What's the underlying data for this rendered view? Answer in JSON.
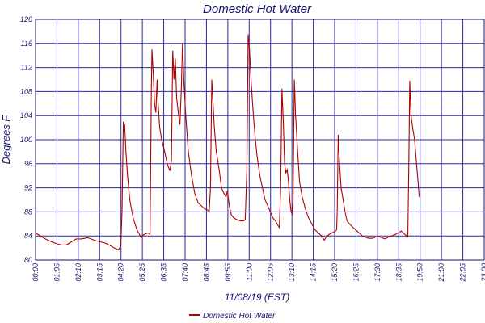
{
  "chart_data": {
    "type": "line",
    "title": "Domestic Hot Water",
    "xlabel": "11/08/19 (EST)",
    "ylabel": "Degrees F",
    "ylim": [
      80,
      120
    ],
    "yticks": [
      80,
      84,
      88,
      92,
      96,
      100,
      104,
      108,
      112,
      116,
      120
    ],
    "xlim": [
      0,
      1380
    ],
    "xtick_labels": [
      "00:00",
      "01:05",
      "02:10",
      "03:15",
      "04:20",
      "05:25",
      "06:35",
      "07:40",
      "08:45",
      "09:55",
      "11:00",
      "12:05",
      "13:10",
      "14:15",
      "15:20",
      "16:25",
      "17:30",
      "18:35",
      "19:50",
      "21:00",
      "22:05",
      "23:00"
    ],
    "grid": true,
    "legend_position": "bottom-center",
    "series": [
      {
        "name": "Domestic Hot Water",
        "color": "#b00000",
        "points": [
          [
            0,
            84.5
          ],
          [
            15,
            84
          ],
          [
            30,
            83.5
          ],
          [
            50,
            83
          ],
          [
            65,
            82.7
          ],
          [
            80,
            82.5
          ],
          [
            95,
            82.5
          ],
          [
            110,
            83
          ],
          [
            125,
            83.5
          ],
          [
            140,
            83.5
          ],
          [
            160,
            83.7
          ],
          [
            180,
            83.3
          ],
          [
            200,
            83
          ],
          [
            215,
            82.8
          ],
          [
            230,
            82.4
          ],
          [
            245,
            81.9
          ],
          [
            255,
            81.7
          ],
          [
            262,
            82.3
          ],
          [
            266,
            88
          ],
          [
            270,
            103
          ],
          [
            274,
            102.5
          ],
          [
            278,
            98
          ],
          [
            283,
            94
          ],
          [
            290,
            90
          ],
          [
            300,
            87
          ],
          [
            312,
            85
          ],
          [
            325,
            83.7
          ],
          [
            332,
            84.2
          ],
          [
            345,
            84.5
          ],
          [
            352,
            84.3
          ],
          [
            354,
            95
          ],
          [
            356,
            108
          ],
          [
            358,
            115
          ],
          [
            362,
            111
          ],
          [
            366,
            106
          ],
          [
            370,
            104.5
          ],
          [
            374,
            110
          ],
          [
            377,
            106
          ],
          [
            382,
            102
          ],
          [
            388,
            100
          ],
          [
            395,
            98.5
          ],
          [
            405,
            96
          ],
          [
            413,
            94.8
          ],
          [
            418,
            96.5
          ],
          [
            422,
            114.8
          ],
          [
            426,
            110
          ],
          [
            430,
            113.5
          ],
          [
            434,
            107
          ],
          [
            440,
            104
          ],
          [
            444,
            102.5
          ],
          [
            448,
            108
          ],
          [
            452,
            116
          ],
          [
            456,
            110
          ],
          [
            462,
            104
          ],
          [
            470,
            98
          ],
          [
            480,
            94
          ],
          [
            490,
            91
          ],
          [
            500,
            89.5
          ],
          [
            510,
            89
          ],
          [
            520,
            88.5
          ],
          [
            530,
            88.3
          ],
          [
            534,
            88
          ],
          [
            538,
            92
          ],
          [
            542,
            110
          ],
          [
            546,
            106
          ],
          [
            550,
            102
          ],
          [
            556,
            98
          ],
          [
            565,
            95
          ],
          [
            572,
            92
          ],
          [
            580,
            91
          ],
          [
            586,
            90.5
          ],
          [
            590,
            91.5
          ],
          [
            596,
            89
          ],
          [
            602,
            87.5
          ],
          [
            610,
            87
          ],
          [
            620,
            86.7
          ],
          [
            630,
            86.5
          ],
          [
            640,
            86.5
          ],
          [
            645,
            86.8
          ],
          [
            650,
            95
          ],
          [
            654,
            117.5
          ],
          [
            658,
            115
          ],
          [
            664,
            109
          ],
          [
            670,
            104
          ],
          [
            676,
            100
          ],
          [
            682,
            97
          ],
          [
            690,
            94
          ],
          [
            698,
            92
          ],
          [
            706,
            90
          ],
          [
            714,
            89
          ],
          [
            722,
            88
          ],
          [
            730,
            87
          ],
          [
            738,
            86.5
          ],
          [
            745,
            85.8
          ],
          [
            750,
            85.4
          ],
          [
            754,
            92
          ],
          [
            758,
            108.5
          ],
          [
            762,
            103
          ],
          [
            766,
            96
          ],
          [
            770,
            94.5
          ],
          [
            774,
            95
          ],
          [
            778,
            93
          ],
          [
            782,
            90
          ],
          [
            786,
            88
          ],
          [
            790,
            87.6
          ],
          [
            792,
            90
          ],
          [
            796,
            110
          ],
          [
            800,
            104
          ],
          [
            806,
            98
          ],
          [
            812,
            93
          ],
          [
            820,
            90.5
          ],
          [
            830,
            88.5
          ],
          [
            840,
            87
          ],
          [
            850,
            86
          ],
          [
            860,
            85
          ],
          [
            870,
            84.5
          ],
          [
            880,
            84
          ],
          [
            888,
            83.3
          ],
          [
            896,
            84
          ],
          [
            905,
            84.3
          ],
          [
            915,
            84.6
          ],
          [
            922,
            84.8
          ],
          [
            926,
            85
          ],
          [
            928,
            88
          ],
          [
            931,
            100.8
          ],
          [
            935,
            96
          ],
          [
            940,
            92
          ],
          [
            946,
            90
          ],
          [
            952,
            88
          ],
          [
            958,
            86.5
          ],
          [
            966,
            86
          ],
          [
            975,
            85.5
          ],
          [
            985,
            85
          ],
          [
            995,
            84.5
          ],
          [
            1005,
            84
          ],
          [
            1015,
            83.8
          ],
          [
            1025,
            83.6
          ],
          [
            1035,
            83.6
          ],
          [
            1045,
            83.8
          ],
          [
            1055,
            83.9
          ],
          [
            1065,
            83.7
          ],
          [
            1075,
            83.5
          ],
          [
            1085,
            83.8
          ],
          [
            1095,
            84
          ],
          [
            1105,
            84.2
          ],
          [
            1115,
            84.5
          ],
          [
            1125,
            84.8
          ],
          [
            1135,
            84.3
          ],
          [
            1142,
            84
          ],
          [
            1145,
            83.9
          ],
          [
            1148,
            95
          ],
          [
            1151,
            109.8
          ],
          [
            1155,
            104
          ],
          [
            1160,
            102
          ],
          [
            1166,
            100
          ],
          [
            1172,
            96
          ],
          [
            1178,
            92
          ],
          [
            1180,
            90.5
          ]
        ]
      }
    ]
  }
}
